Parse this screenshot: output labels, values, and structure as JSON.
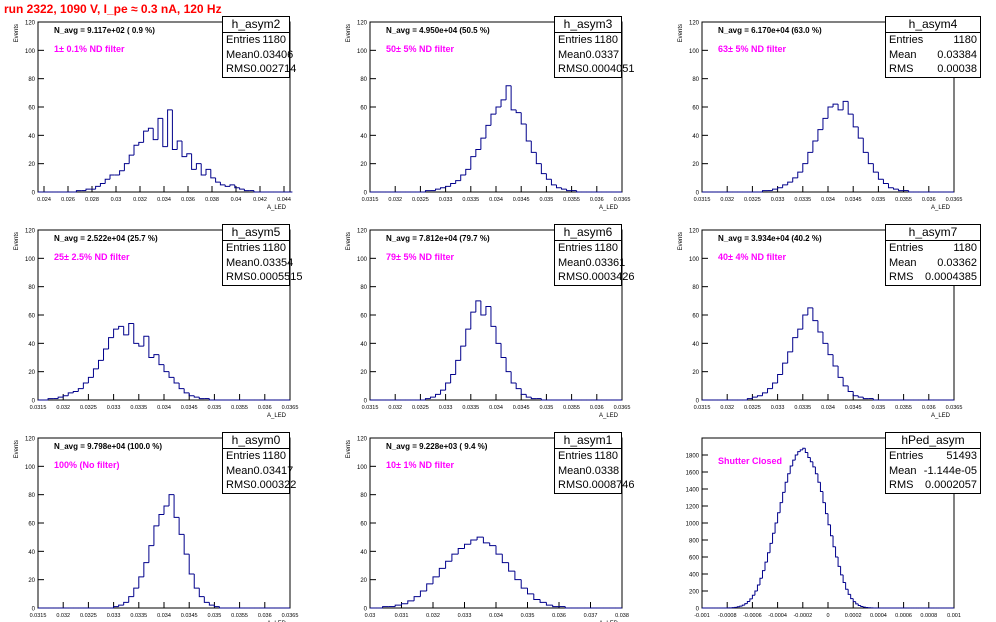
{
  "title": "run 2322,  1090 V, I_pe ≈ 0.3 nA, 120 Hz",
  "stat_labels": {
    "entries": "Entries",
    "mean": "Mean",
    "rms": "RMS"
  },
  "colors": {
    "histogram": "#00008b",
    "title": "#ff0000",
    "annotation": "#ff00ff"
  },
  "chart_data": [
    {
      "type": "bar",
      "name": "h_asym2",
      "ylabel": "Events",
      "xlabel": "A_LED",
      "annotation": "N_avg = 9.117e+02 ( 0.9 %)",
      "filter_label": "1± 0.1% ND filter",
      "stats": {
        "entries": "1180",
        "mean": "0.03406",
        "rms": "0.002714"
      },
      "xlim": [
        0.0235,
        0.0445
      ],
      "ylim": [
        0,
        120
      ],
      "xticks": [
        0.024,
        0.026,
        0.028,
        0.03,
        0.032,
        0.034,
        0.036,
        0.038,
        0.04,
        0.042,
        0.044
      ],
      "yticks": [
        0,
        20,
        40,
        60,
        80,
        100,
        120
      ],
      "bins": {
        "start": 0.0235,
        "width": 0.0004,
        "values": [
          0,
          0,
          0,
          0,
          0,
          0,
          0,
          0,
          1,
          1,
          2,
          2,
          4,
          6,
          9,
          12,
          12,
          15,
          20,
          26,
          33,
          35,
          43,
          45,
          37,
          52,
          32,
          58,
          30,
          36,
          25,
          27,
          16,
          20,
          12,
          16,
          10,
          7,
          5,
          4,
          5,
          3,
          2,
          1,
          1,
          0,
          0,
          0,
          0,
          0,
          0,
          0,
          0
        ]
      }
    },
    {
      "type": "bar",
      "name": "h_asym3",
      "ylabel": "Events",
      "xlabel": "A_LED",
      "annotation": "N_avg = 4.950e+04 (50.5 %)",
      "filter_label": "50± 5% ND filter",
      "stats": {
        "entries": "1180",
        "mean": "0.0337",
        "rms": "0.0004051"
      },
      "xlim": [
        0.0315,
        0.0365
      ],
      "ylim": [
        0,
        120
      ],
      "xticks": [
        0.0315,
        0.032,
        0.0325,
        0.033,
        0.0335,
        0.034,
        0.0345,
        0.035,
        0.0355,
        0.036,
        0.0365
      ],
      "yticks": [
        0,
        20,
        40,
        60,
        80,
        100,
        120
      ],
      "bins": {
        "start": 0.0315,
        "width": 0.0001,
        "values": [
          0,
          0,
          0,
          0,
          0,
          0,
          0,
          0,
          0,
          0,
          0,
          1,
          1,
          2,
          3,
          4,
          6,
          8,
          12,
          16,
          25,
          30,
          38,
          47,
          55,
          60,
          65,
          75,
          58,
          56,
          48,
          36,
          28,
          20,
          13,
          9,
          5,
          3,
          2,
          1,
          1,
          0,
          0,
          0,
          0,
          0,
          0,
          0,
          0,
          0
        ]
      }
    },
    {
      "type": "bar",
      "name": "h_asym4",
      "ylabel": "Events",
      "xlabel": "A_LED",
      "annotation": "N_avg = 6.170e+04 (63.0 %)",
      "filter_label": "63± 5% ND filter",
      "stats": {
        "entries": "1180",
        "mean": "0.03384",
        "rms": "0.00038"
      },
      "xlim": [
        0.0315,
        0.0365
      ],
      "ylim": [
        0,
        120
      ],
      "xticks": [
        0.0315,
        0.032,
        0.0325,
        0.033,
        0.0335,
        0.034,
        0.0345,
        0.035,
        0.0355,
        0.036,
        0.0365
      ],
      "yticks": [
        0,
        20,
        40,
        60,
        80,
        100,
        120
      ],
      "bins": {
        "start": 0.0315,
        "width": 0.0001,
        "values": [
          0,
          0,
          0,
          0,
          0,
          0,
          0,
          0,
          0,
          0,
          0,
          0,
          1,
          1,
          2,
          3,
          5,
          7,
          10,
          14,
          20,
          28,
          36,
          44,
          52,
          60,
          62,
          58,
          64,
          55,
          46,
          38,
          28,
          20,
          14,
          9,
          6,
          3,
          2,
          1,
          1,
          0,
          0,
          0,
          0,
          0,
          0,
          0,
          0,
          0
        ]
      }
    },
    {
      "type": "bar",
      "name": "h_asym5",
      "ylabel": "Events",
      "xlabel": "A_LED",
      "annotation": "N_avg = 2.522e+04 (25.7 %)",
      "filter_label": "25± 2.5% ND filter",
      "stats": {
        "entries": "1180",
        "mean": "0.03354",
        "rms": "0.0005515"
      },
      "xlim": [
        0.0315,
        0.0365
      ],
      "ylim": [
        0,
        120
      ],
      "xticks": [
        0.0315,
        0.032,
        0.0325,
        0.033,
        0.0335,
        0.034,
        0.0345,
        0.035,
        0.0355,
        0.036,
        0.0365
      ],
      "yticks": [
        0,
        20,
        40,
        60,
        80,
        100,
        120
      ],
      "bins": {
        "start": 0.0315,
        "width": 0.0001,
        "values": [
          0,
          0,
          1,
          1,
          2,
          3,
          5,
          6,
          8,
          12,
          16,
          22,
          28,
          36,
          44,
          50,
          52,
          46,
          54,
          40,
          38,
          45,
          30,
          32,
          25,
          20,
          16,
          12,
          8,
          5,
          3,
          2,
          1,
          1,
          0,
          0,
          0,
          0,
          0,
          0,
          0,
          0,
          0,
          0,
          0,
          0,
          0,
          0,
          0,
          0
        ]
      }
    },
    {
      "type": "bar",
      "name": "h_asym6",
      "ylabel": "Events",
      "xlabel": "A_LED",
      "annotation": "N_avg = 7.812e+04 (79.7 %)",
      "filter_label": "79± 5% ND filter",
      "stats": {
        "entries": "1180",
        "mean": "0.03361",
        "rms": "0.0003426"
      },
      "xlim": [
        0.0315,
        0.0365
      ],
      "ylim": [
        0,
        120
      ],
      "xticks": [
        0.0315,
        0.032,
        0.0325,
        0.033,
        0.0335,
        0.034,
        0.0345,
        0.035,
        0.0355,
        0.036,
        0.0365
      ],
      "yticks": [
        0,
        20,
        40,
        60,
        80,
        100,
        120
      ],
      "bins": {
        "start": 0.0315,
        "width": 0.0001,
        "values": [
          0,
          0,
          0,
          0,
          0,
          0,
          0,
          0,
          0,
          0,
          0,
          1,
          2,
          4,
          7,
          12,
          18,
          28,
          38,
          50,
          62,
          70,
          60,
          66,
          52,
          40,
          30,
          20,
          12,
          8,
          4,
          2,
          1,
          1,
          0,
          0,
          0,
          0,
          0,
          0,
          0,
          0,
          0,
          0,
          0,
          0,
          0,
          0,
          0,
          0
        ]
      }
    },
    {
      "type": "bar",
      "name": "h_asym7",
      "ylabel": "Events",
      "xlabel": "A_LED",
      "annotation": "N_avg = 3.934e+04 (40.2 %)",
      "filter_label": "40± 4% ND filter",
      "stats": {
        "entries": "1180",
        "mean": "0.03362",
        "rms": "0.0004385"
      },
      "xlim": [
        0.0315,
        0.0365
      ],
      "ylim": [
        0,
        120
      ],
      "xticks": [
        0.0315,
        0.032,
        0.0325,
        0.033,
        0.0335,
        0.034,
        0.0345,
        0.035,
        0.0355,
        0.036,
        0.0365
      ],
      "yticks": [
        0,
        20,
        40,
        60,
        80,
        100,
        120
      ],
      "bins": {
        "start": 0.0315,
        "width": 0.0001,
        "values": [
          0,
          0,
          0,
          0,
          0,
          0,
          0,
          0,
          0,
          1,
          2,
          3,
          5,
          8,
          12,
          18,
          26,
          34,
          44,
          50,
          60,
          65,
          56,
          48,
          40,
          32,
          24,
          16,
          10,
          6,
          3,
          2,
          1,
          1,
          0,
          0,
          0,
          0,
          0,
          0,
          0,
          0,
          0,
          0,
          0,
          0,
          0,
          0,
          0,
          0
        ]
      }
    },
    {
      "type": "bar",
      "name": "h_asym0",
      "ylabel": "Events",
      "xlabel": "A_LED",
      "annotation": "N_avg = 9.798e+04 (100.0 %)",
      "filter_label": "100% (No filter)",
      "stats": {
        "entries": "1180",
        "mean": "0.03417",
        "rms": "0.000322"
      },
      "xlim": [
        0.0315,
        0.0365
      ],
      "ylim": [
        0,
        120
      ],
      "xticks": [
        0.0315,
        0.032,
        0.0325,
        0.033,
        0.0335,
        0.034,
        0.0345,
        0.035,
        0.0355,
        0.036,
        0.0365
      ],
      "yticks": [
        0,
        20,
        40,
        60,
        80,
        100,
        120
      ],
      "bins": {
        "start": 0.0315,
        "width": 0.0001,
        "values": [
          0,
          0,
          0,
          0,
          0,
          0,
          0,
          0,
          0,
          0,
          0,
          0,
          0,
          0,
          0,
          1,
          2,
          4,
          8,
          14,
          22,
          32,
          44,
          58,
          66,
          72,
          80,
          64,
          52,
          38,
          24,
          14,
          8,
          4,
          2,
          1,
          0,
          0,
          0,
          0,
          0,
          0,
          0,
          0,
          0,
          0,
          0,
          0,
          0,
          0
        ]
      }
    },
    {
      "type": "bar",
      "name": "h_asym1",
      "ylabel": "Events",
      "xlabel": "A_LED",
      "annotation": "N_avg = 9.228e+03 ( 9.4 %)",
      "filter_label": "10± 1% ND filter",
      "stats": {
        "entries": "1180",
        "mean": "0.0338",
        "rms": "0.0008746"
      },
      "xlim": [
        0.03,
        0.038
      ],
      "ylim": [
        0,
        120
      ],
      "xticks": [
        0.03,
        0.031,
        0.032,
        0.033,
        0.034,
        0.035,
        0.036,
        0.037,
        0.038
      ],
      "yticks": [
        0,
        20,
        40,
        60,
        80,
        100,
        120
      ],
      "bins": {
        "start": 0.03,
        "width": 0.0002,
        "values": [
          0,
          0,
          1,
          1,
          2,
          3,
          5,
          8,
          12,
          17,
          22,
          28,
          33,
          38,
          42,
          45,
          48,
          50,
          46,
          44,
          38,
          32,
          26,
          20,
          14,
          10,
          6,
          4,
          2,
          1,
          1,
          0,
          0,
          0,
          0,
          0,
          0,
          0,
          0,
          0
        ]
      }
    },
    {
      "type": "bar",
      "name": "hPed_asym",
      "ylabel": "",
      "xlabel": "",
      "annotation": "",
      "filter_label": "Shutter Closed",
      "stats": {
        "entries": "51493",
        "mean": "-1.144e-05",
        "rms": "0.0002057"
      },
      "xlim": [
        -0.001,
        0.001
      ],
      "ylim": [
        0,
        2000
      ],
      "xticks": [
        -0.001,
        -0.0008,
        -0.0006,
        -0.0004,
        -0.0002,
        0,
        0.0002,
        0.0004,
        0.0006,
        0.0008,
        0.001
      ],
      "yticks": [
        0,
        200,
        400,
        600,
        800,
        1000,
        1200,
        1400,
        1600,
        1800
      ],
      "bins": {
        "start": -0.001,
        "width": 2e-05,
        "values": [
          0,
          0,
          0,
          0,
          0,
          0,
          0,
          0,
          0,
          0,
          1,
          2,
          4,
          8,
          14,
          22,
          34,
          52,
          76,
          108,
          150,
          200,
          270,
          350,
          440,
          540,
          650,
          760,
          880,
          1000,
          1120,
          1240,
          1360,
          1480,
          1580,
          1670,
          1740,
          1800,
          1840,
          1860,
          1880,
          1830,
          1770,
          1720,
          1660,
          1580,
          1480,
          1370,
          1240,
          1110,
          980,
          850,
          720,
          600,
          490,
          390,
          300,
          220,
          160,
          110,
          75,
          48,
          30,
          18,
          10,
          6,
          3,
          1,
          0,
          0,
          0,
          0,
          0,
          0,
          0,
          0,
          0,
          0,
          0,
          0,
          0,
          0,
          0,
          0,
          0,
          0,
          0,
          0,
          0,
          0,
          0,
          0,
          0,
          0,
          0,
          0,
          0,
          0,
          0,
          0
        ]
      }
    }
  ]
}
